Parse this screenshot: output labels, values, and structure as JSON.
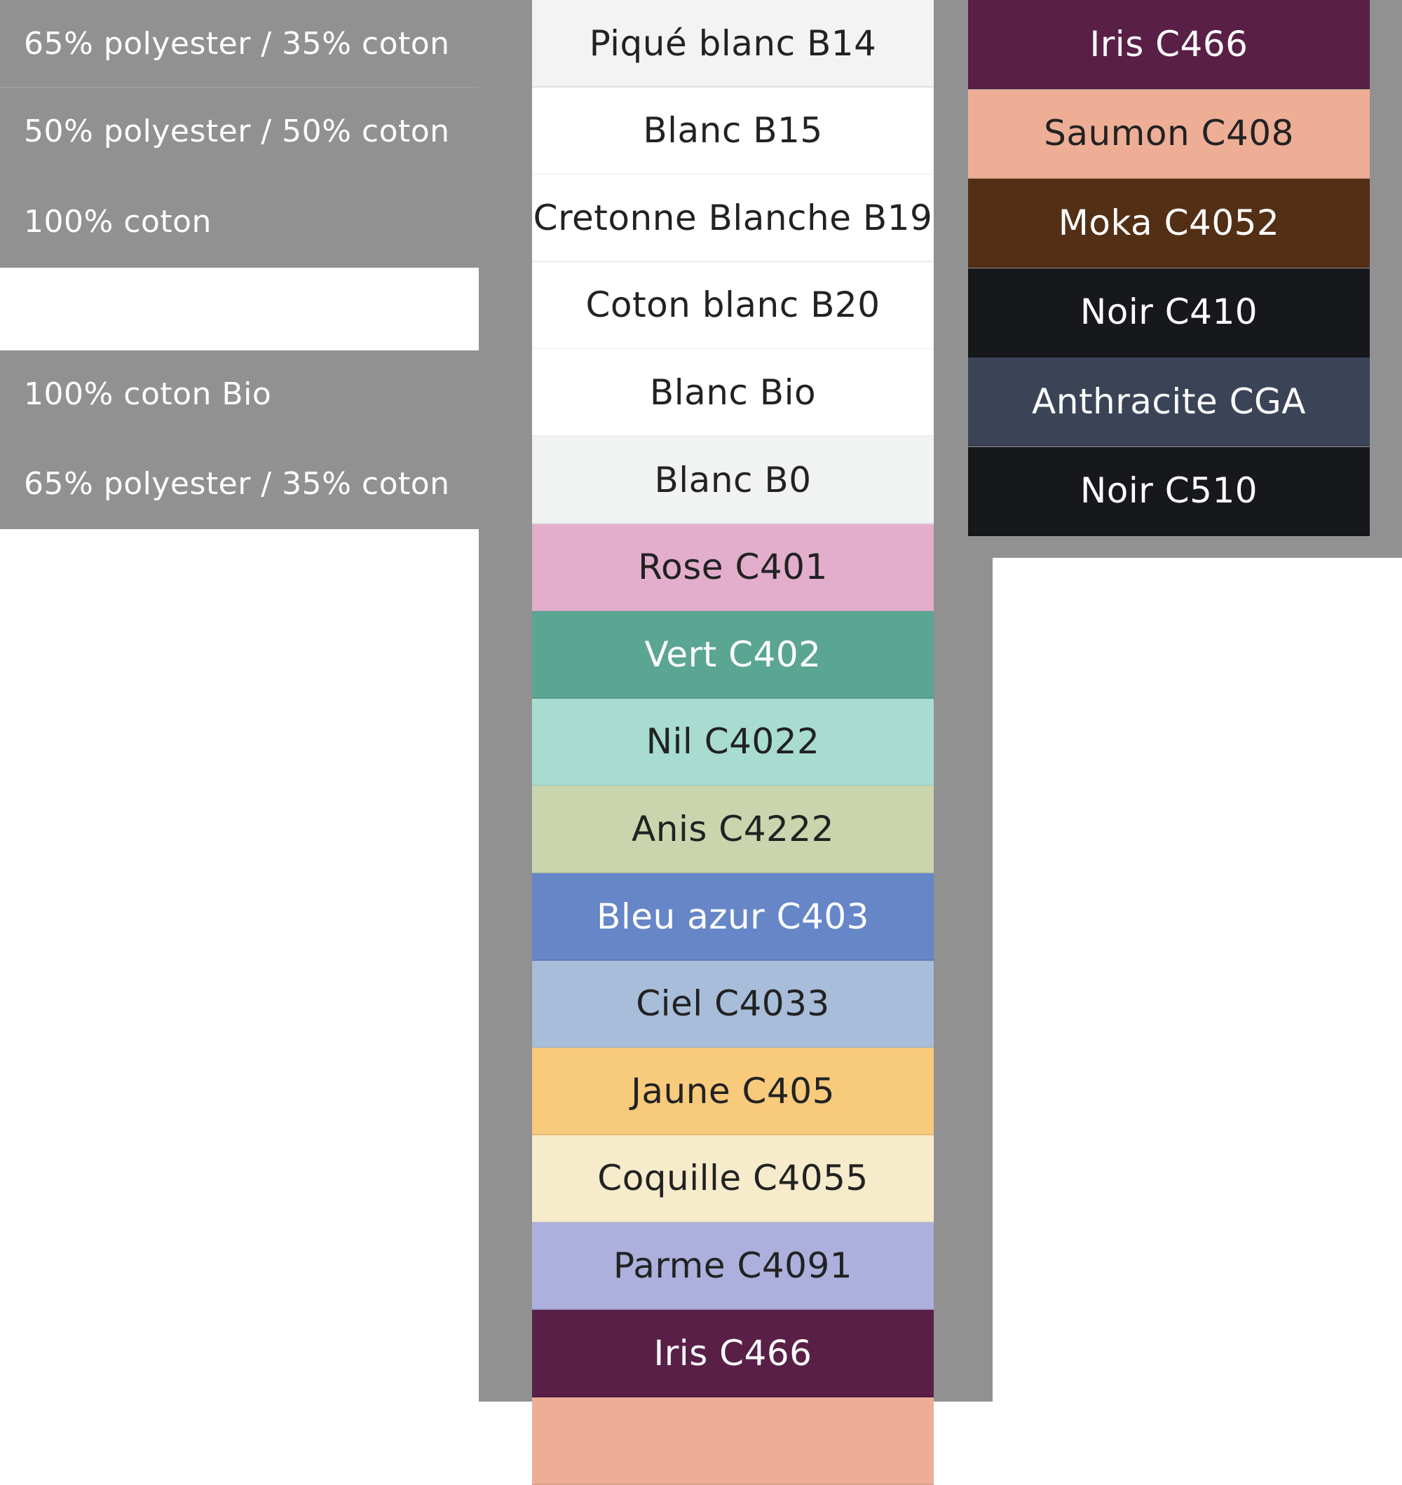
{
  "compositions": [
    {
      "label": "65% polyester / 35% coton"
    },
    {
      "label": "50% polyester / 50% coton"
    },
    {
      "label": "100% coton"
    },
    {
      "label": "100% coton Bio"
    },
    {
      "label": "65% polyester / 35% coton"
    }
  ],
  "middle_swatches": [
    {
      "label": "Piqué blanc B14",
      "color": "#f3f3f3",
      "text": "#222222"
    },
    {
      "label": "Blanc B15",
      "color": "#ffffff",
      "text": "#222222"
    },
    {
      "label": "Cretonne Blanche B19",
      "color": "#ffffff",
      "text": "#222222"
    },
    {
      "label": "Coton blanc B20",
      "color": "#ffffff",
      "text": "#222222"
    },
    {
      "label": "Blanc Bio",
      "color": "#ffffff",
      "text": "#222222"
    },
    {
      "label": "Blanc B0",
      "color": "#f1f3f2",
      "text": "#222222"
    },
    {
      "label": "Rose C401",
      "color": "#e2aecb",
      "text": "#222222"
    },
    {
      "label": "Vert C402",
      "color": "#5ba593",
      "text": "#ffffff"
    },
    {
      "label": "Nil C4022",
      "color": "#a8dcd1",
      "text": "#222222"
    },
    {
      "label": "Anis C4222",
      "color": "#cad5ae",
      "text": "#222222"
    },
    {
      "label": "Bleu azur C403",
      "color": "#6686c8",
      "text": "#ffffff"
    },
    {
      "label": "Ciel C4033",
      "color": "#a7bdd9",
      "text": "#222222"
    },
    {
      "label": "Jaune C405",
      "color": "#f8ca7c",
      "text": "#222222"
    },
    {
      "label": "Coquille C4055",
      "color": "#f6ebcb",
      "text": "#222222"
    },
    {
      "label": "Parme C4091",
      "color": "#adb0dc",
      "text": "#222222"
    },
    {
      "label": "Iris C466",
      "color": "#591f47",
      "text": "#ffffff"
    },
    {
      "label": "",
      "color": "#eeae96",
      "text": "#222222"
    }
  ],
  "right_swatches": [
    {
      "label": "Iris C466",
      "color": "#591f47",
      "text": "#ffffff"
    },
    {
      "label": "Saumon C408",
      "color": "#eeae96",
      "text": "#222222"
    },
    {
      "label": "Moka C4052",
      "color": "#532f16",
      "text": "#ffffff"
    },
    {
      "label": "Noir C410",
      "color": "#17181b",
      "text": "#ffffff"
    },
    {
      "label": "Anthracite CGA",
      "color": "#3b4456",
      "text": "#ffffff"
    },
    {
      "label": "Noir C510",
      "color": "#17181b",
      "text": "#ffffff"
    }
  ]
}
